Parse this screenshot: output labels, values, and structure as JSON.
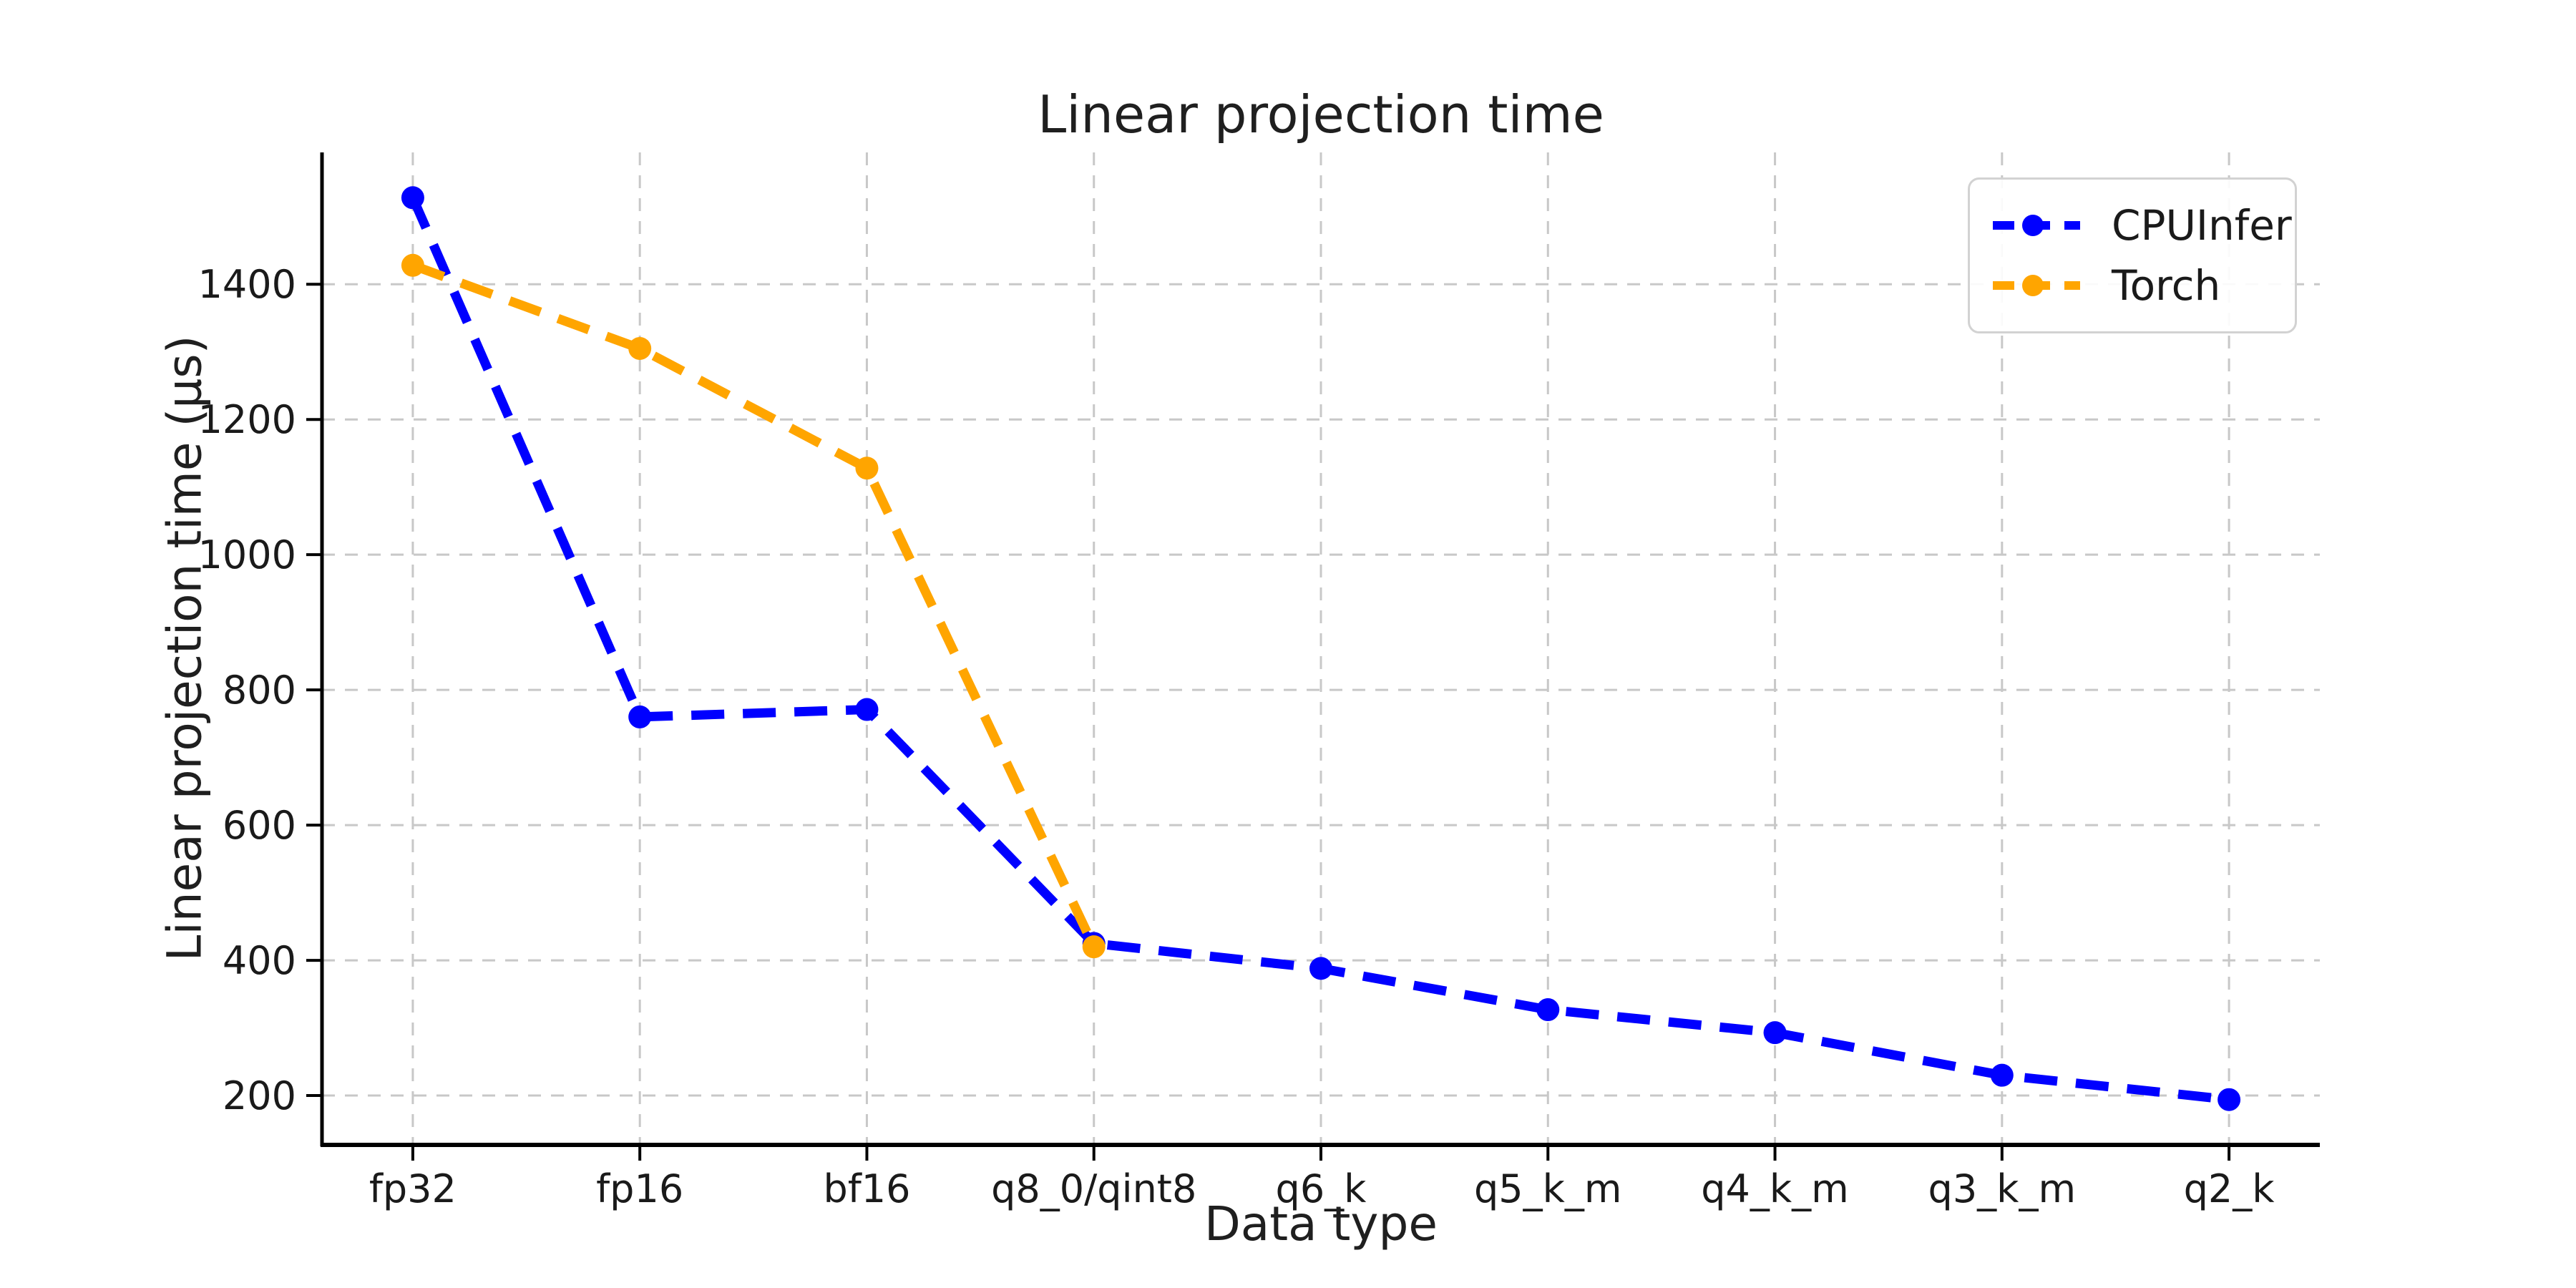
{
  "chart_data": {
    "type": "line",
    "title": "Linear projection time",
    "xlabel": "Data type",
    "ylabel": "Linear projection time (μs)",
    "categories": [
      "fp32",
      "fp16",
      "bf16",
      "q8_0/qint8",
      "q6_k",
      "q5_k_m",
      "q4_k_m",
      "q3_k_m",
      "q2_k"
    ],
    "series": [
      {
        "name": "CPUInfer",
        "color": "#0000ff",
        "values": [
          1528,
          760,
          771,
          425,
          388,
          327,
          293,
          230,
          194
        ]
      },
      {
        "name": "Torch",
        "color": "#ffa500",
        "values": [
          1428,
          1305,
          1128,
          420
        ]
      }
    ],
    "ylim": [
      127,
      1595
    ],
    "yticks": [
      200,
      400,
      600,
      800,
      1000,
      1200,
      1400
    ],
    "grid": {
      "show": true,
      "style": "dashed",
      "color": "#c8c8c8"
    },
    "legend": {
      "position": "upper right"
    },
    "line_style": "dashed",
    "marker": "circle",
    "text_color": "#1a1a1a",
    "spine_color": "#000000"
  }
}
